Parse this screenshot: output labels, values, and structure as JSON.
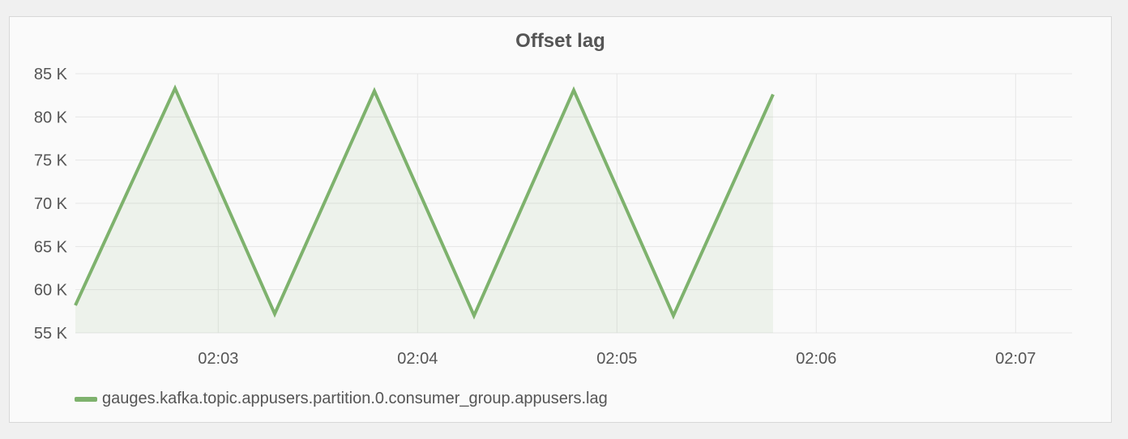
{
  "panel": {
    "title": "Offset lag"
  },
  "colors": {
    "series": "#7eb26d",
    "fill": "#7eb26d",
    "grid": "#e6e6e6"
  },
  "chart_data": {
    "type": "area",
    "title": "Offset lag",
    "xlabel": "",
    "ylabel": "",
    "x_tick_labels": [
      "02:03",
      "02:04",
      "02:05",
      "02:06",
      "02:07"
    ],
    "y_tick_labels": [
      "55 K",
      "60 K",
      "65 K",
      "70 K",
      "75 K",
      "80 K",
      "85 K"
    ],
    "y_ticks": [
      55000,
      60000,
      65000,
      70000,
      75000,
      80000,
      85000
    ],
    "ylim": [
      55000,
      85000
    ],
    "xlim": [
      "02:02:17",
      "02:07:17"
    ],
    "grid": true,
    "legend_position": "bottom-left",
    "series": [
      {
        "name": "gauges.kafka.topic.appusers.partition.0.consumer_group.appusers.lag",
        "x": [
          "02:02:17",
          "02:02:47",
          "02:03:17",
          "02:03:47",
          "02:04:17",
          "02:04:47",
          "02:05:17",
          "02:05:47"
        ],
        "values": [
          58200,
          83300,
          57200,
          83000,
          57000,
          83100,
          57000,
          82600
        ]
      }
    ]
  }
}
